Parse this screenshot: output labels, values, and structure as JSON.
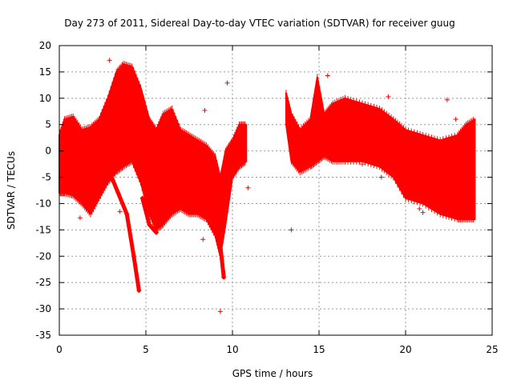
{
  "chart_data": {
    "type": "scatter",
    "title": "Day 273 of 2011, Sidereal Day-to-day VTEC variation (SDTVAR) for receiver guug",
    "xlabel": "GPS time / hours",
    "ylabel": "SDTVAR / TECUs",
    "xlim": [
      0,
      25
    ],
    "ylim": [
      -35,
      20
    ],
    "xticks": [
      0,
      5,
      10,
      15,
      20,
      25
    ],
    "yticks": [
      20,
      15,
      10,
      5,
      0,
      -5,
      -10,
      -15,
      -20,
      -25,
      -30,
      -35
    ],
    "grid": true,
    "series_color": "#ff0000",
    "band": [
      {
        "x": 0.0,
        "lo": -8,
        "hi": 3
      },
      {
        "x": 0.3,
        "lo": -8,
        "hi": 6
      },
      {
        "x": 0.8,
        "lo": -8.5,
        "hi": 6.5
      },
      {
        "x": 1.3,
        "lo": -10,
        "hi": 4
      },
      {
        "x": 1.8,
        "lo": -12,
        "hi": 4.5
      },
      {
        "x": 2.3,
        "lo": -9,
        "hi": 6
      },
      {
        "x": 2.8,
        "lo": -6,
        "hi": 10
      },
      {
        "x": 3.3,
        "lo": -4,
        "hi": 15
      },
      {
        "x": 3.7,
        "lo": -3,
        "hi": 16.5
      },
      {
        "x": 4.2,
        "lo": -2,
        "hi": 16
      },
      {
        "x": 4.7,
        "lo": -6,
        "hi": 12
      },
      {
        "x": 5.2,
        "lo": -12,
        "hi": 6
      },
      {
        "x": 5.6,
        "lo": -15,
        "hi": 4
      },
      {
        "x": 6.0,
        "lo": -14,
        "hi": 7
      },
      {
        "x": 6.5,
        "lo": -12,
        "hi": 8
      },
      {
        "x": 7.0,
        "lo": -11,
        "hi": 4
      },
      {
        "x": 7.5,
        "lo": -12,
        "hi": 3
      },
      {
        "x": 8.0,
        "lo": -12,
        "hi": 2
      },
      {
        "x": 8.5,
        "lo": -13,
        "hi": 1
      },
      {
        "x": 9.0,
        "lo": -16,
        "hi": -1
      },
      {
        "x": 9.3,
        "lo": -20,
        "hi": -5
      },
      {
        "x": 9.6,
        "lo": -14,
        "hi": 0
      },
      {
        "x": 10.0,
        "lo": -5,
        "hi": 2
      },
      {
        "x": 10.4,
        "lo": -3,
        "hi": 5
      },
      {
        "x": 10.8,
        "lo": -2,
        "hi": 5
      },
      {
        "gap": true
      },
      {
        "x": 13.1,
        "lo": 5,
        "hi": 11
      },
      {
        "x": 13.4,
        "lo": -2,
        "hi": 7
      },
      {
        "x": 13.9,
        "lo": -4,
        "hi": 4
      },
      {
        "x": 14.5,
        "lo": -3,
        "hi": 6
      },
      {
        "x": 14.9,
        "lo": -2,
        "hi": 14
      },
      {
        "x": 15.3,
        "lo": -1,
        "hi": 7
      },
      {
        "x": 15.8,
        "lo": -2,
        "hi": 9
      },
      {
        "x": 16.5,
        "lo": -2,
        "hi": 10
      },
      {
        "x": 17.5,
        "lo": -2,
        "hi": 9
      },
      {
        "x": 18.5,
        "lo": -3,
        "hi": 8
      },
      {
        "x": 19.3,
        "lo": -5,
        "hi": 6
      },
      {
        "x": 20.0,
        "lo": -9,
        "hi": 4
      },
      {
        "x": 21.0,
        "lo": -10,
        "hi": 3
      },
      {
        "x": 22.0,
        "lo": -12,
        "hi": 2
      },
      {
        "x": 23.0,
        "lo": -13,
        "hi": 3
      },
      {
        "x": 23.5,
        "lo": -13,
        "hi": 5
      },
      {
        "x": 24.0,
        "lo": -13,
        "hi": 6
      }
    ],
    "streaks": [
      {
        "pts": [
          [
            2.9,
            -4
          ],
          [
            3.4,
            -8
          ],
          [
            3.9,
            -12
          ],
          [
            4.3,
            -20
          ],
          [
            4.6,
            -26.5
          ]
        ]
      },
      {
        "pts": [
          [
            4.8,
            -9
          ],
          [
            5.2,
            -14
          ],
          [
            5.6,
            -15.5
          ]
        ]
      },
      {
        "pts": [
          [
            9.0,
            -12
          ],
          [
            9.3,
            -18
          ],
          [
            9.5,
            -24
          ]
        ]
      }
    ],
    "outliers": [
      [
        2.9,
        17.2
      ],
      [
        9.7,
        12.9
      ],
      [
        9.3,
        -30.5
      ],
      [
        13.4,
        -15
      ],
      [
        15.5,
        14.3
      ],
      [
        22.4,
        9.7
      ],
      [
        8.4,
        7.7
      ],
      [
        1.2,
        -12.7
      ],
      [
        3.5,
        -11.5
      ],
      [
        8.3,
        -16.8
      ],
      [
        10.9,
        -7
      ],
      [
        20.8,
        -11
      ],
      [
        21.0,
        -11.7
      ],
      [
        19.0,
        10.3
      ],
      [
        22.9,
        6
      ],
      [
        18.6,
        -5
      ],
      [
        17.5,
        -2.5
      ]
    ]
  }
}
